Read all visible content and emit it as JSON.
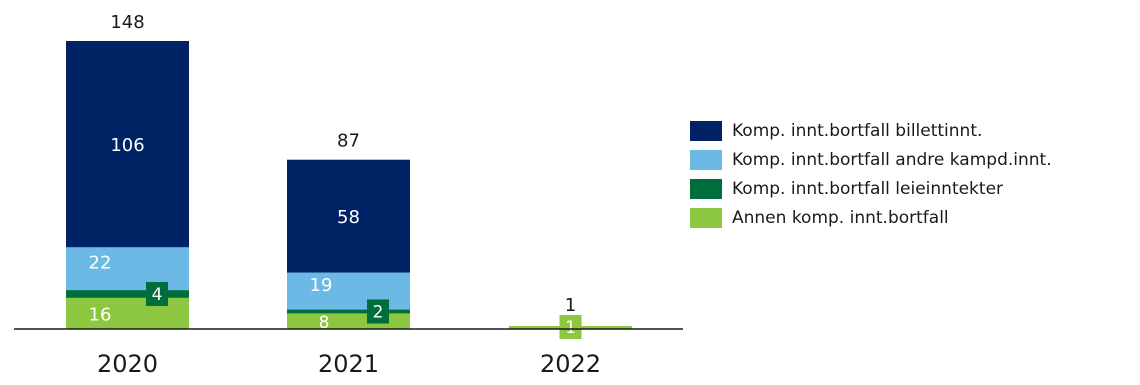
{
  "chart_data": {
    "type": "bar",
    "stacked": true,
    "categories": [
      "2020",
      "2021",
      "2022"
    ],
    "series": [
      {
        "name": "Annen komp. innt.bortfall",
        "values": [
          16,
          8,
          1
        ],
        "color": "#8dc63f"
      },
      {
        "name": "Komp. innt.bortfall leieinntekter",
        "values": [
          4,
          2,
          0
        ],
        "color": "#006e3c"
      },
      {
        "name": "Komp. innt.bortfall andre kampd.innt.",
        "values": [
          22,
          19,
          0
        ],
        "color": "#6cb9e6"
      },
      {
        "name": "Komp. innt.bortfall billettinnt.",
        "values": [
          106,
          58,
          0
        ],
        "color": "#002366"
      }
    ],
    "totals": [
      148,
      87,
      1
    ],
    "legend": {
      "position": "right",
      "order": [
        "Komp. innt.bortfall billettinnt.",
        "Komp. innt.bortfall andre kampd.innt.",
        "Komp. innt.bortfall leieinntekter",
        "Annen komp. innt.bortfall"
      ]
    },
    "title": "",
    "xlabel": "",
    "ylabel": "",
    "ylim": [
      0,
      148
    ],
    "grid": false
  }
}
